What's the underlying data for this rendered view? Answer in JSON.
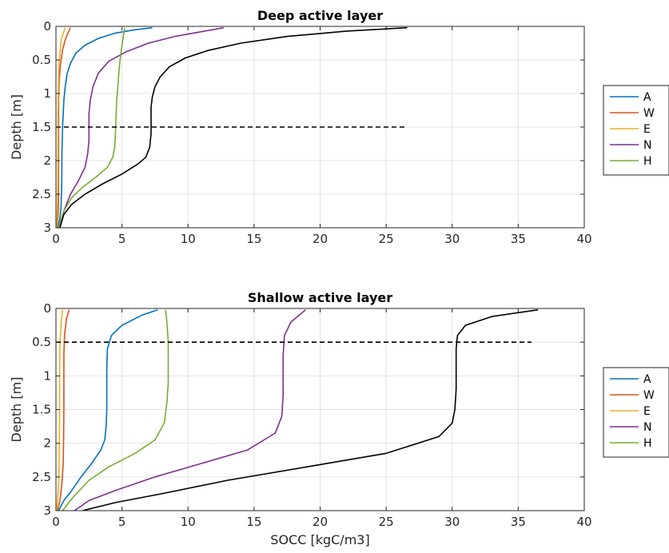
{
  "chart_data": [
    {
      "type": "line",
      "title": "Deep active layer",
      "xlabel": "",
      "ylabel": "Depth [m]",
      "xlim": [
        0,
        40
      ],
      "ylim": [
        0,
        3
      ],
      "y_reversed": true,
      "xticks": [
        0,
        5,
        10,
        15,
        20,
        25,
        30,
        35,
        40
      ],
      "yticks": [
        0,
        0.5,
        1,
        1.5,
        2,
        2.5,
        3
      ],
      "ytick_labels": [
        "0",
        "0.5",
        "1",
        "1.5",
        "2",
        "2.5",
        "3"
      ],
      "grid": true,
      "legend": "right",
      "series": [
        {
          "name": "A",
          "color": "#0072BD",
          "x": [
            7.3,
            6.0,
            4.5,
            3.2,
            2.2,
            1.5,
            1.1,
            0.85,
            0.7,
            0.6,
            0.55,
            0.5,
            0.48,
            0.45,
            0.45,
            0.44,
            0.42,
            0.38,
            0.3,
            0.15
          ],
          "y": [
            0.02,
            0.05,
            0.1,
            0.18,
            0.28,
            0.4,
            0.55,
            0.7,
            0.9,
            1.1,
            1.3,
            1.5,
            1.7,
            1.9,
            2.1,
            2.3,
            2.5,
            2.7,
            2.85,
            3.0
          ]
        },
        {
          "name": "W",
          "color": "#D95319",
          "x": [
            1.1,
            0.9,
            0.7,
            0.5,
            0.35,
            0.25,
            0.2,
            0.2,
            0.2,
            0.2,
            0.2,
            0.18,
            0.12,
            0.05
          ],
          "y": [
            0.02,
            0.1,
            0.2,
            0.35,
            0.55,
            0.8,
            1.1,
            1.5,
            1.9,
            2.3,
            2.55,
            2.75,
            2.9,
            3.0
          ]
        },
        {
          "name": "E",
          "color": "#EDB120",
          "x": [
            0.7,
            0.55,
            0.4,
            0.3,
            0.22,
            0.18,
            0.15,
            0.15,
            0.14,
            0.12,
            0.08,
            0.03
          ],
          "y": [
            0.02,
            0.1,
            0.2,
            0.4,
            0.6,
            0.9,
            1.3,
            1.8,
            2.3,
            2.6,
            2.85,
            3.0
          ]
        },
        {
          "name": "N",
          "color": "#7E2F8E",
          "x": [
            12.7,
            11.0,
            9.0,
            7.0,
            5.3,
            4.0,
            3.2,
            2.8,
            2.6,
            2.5,
            2.5,
            2.5,
            2.4,
            2.2,
            1.7,
            1.1,
            0.6,
            0.2
          ],
          "y": [
            0.02,
            0.08,
            0.15,
            0.25,
            0.38,
            0.52,
            0.7,
            0.9,
            1.1,
            1.3,
            1.5,
            1.7,
            1.9,
            2.1,
            2.3,
            2.5,
            2.75,
            3.0
          ]
        },
        {
          "name": "H",
          "color": "#77AC30",
          "x": [
            5.2,
            5.1,
            4.95,
            4.8,
            4.7,
            4.6,
            4.55,
            4.5,
            4.45,
            4.3,
            3.9,
            3.0,
            2.0,
            1.2,
            0.6,
            0.2
          ],
          "y": [
            0.02,
            0.15,
            0.35,
            0.6,
            0.85,
            1.1,
            1.35,
            1.6,
            1.8,
            1.95,
            2.1,
            2.25,
            2.4,
            2.55,
            2.75,
            3.0
          ]
        },
        {
          "name": "",
          "color": "#000000",
          "x": [
            26.6,
            22.0,
            17.5,
            14.0,
            11.5,
            9.8,
            8.6,
            7.9,
            7.5,
            7.3,
            7.2,
            7.2,
            7.2,
            7.1,
            6.8,
            6.2,
            5.0,
            3.5,
            2.2,
            1.2,
            0.6,
            0.3
          ],
          "y": [
            0.02,
            0.07,
            0.15,
            0.25,
            0.36,
            0.47,
            0.6,
            0.75,
            0.9,
            1.05,
            1.2,
            1.4,
            1.6,
            1.8,
            1.95,
            2.05,
            2.2,
            2.35,
            2.5,
            2.65,
            2.8,
            3.0
          ]
        },
        {
          "name": "",
          "color": "#000000",
          "dashed": true,
          "x": [
            0,
            26.6
          ],
          "y": [
            1.5,
            1.5
          ]
        }
      ]
    },
    {
      "type": "line",
      "title": "Shallow active layer",
      "xlabel": "SOCC [kgC/m3]",
      "ylabel": "Depth [m]",
      "xlim": [
        0,
        40
      ],
      "ylim": [
        0,
        3
      ],
      "y_reversed": true,
      "xticks": [
        0,
        5,
        10,
        15,
        20,
        25,
        30,
        35,
        40
      ],
      "yticks": [
        0,
        0.5,
        1,
        1.5,
        2,
        2.5,
        3
      ],
      "ytick_labels": [
        "0",
        "0.5",
        "1",
        "1.5",
        "2",
        "2.5",
        "3"
      ],
      "grid": true,
      "legend": "right",
      "series": [
        {
          "name": "A",
          "color": "#0072BD",
          "x": [
            7.7,
            6.5,
            5.0,
            4.2,
            3.9,
            3.85,
            3.85,
            3.85,
            3.8,
            3.7,
            3.4,
            2.7,
            1.9,
            1.2,
            0.6,
            0.2
          ],
          "y": [
            0.02,
            0.1,
            0.25,
            0.4,
            0.6,
            0.9,
            1.2,
            1.5,
            1.75,
            1.95,
            2.1,
            2.3,
            2.5,
            2.7,
            2.85,
            3.0
          ]
        },
        {
          "name": "W",
          "color": "#D95319",
          "x": [
            1.0,
            0.8,
            0.65,
            0.6,
            0.6,
            0.6,
            0.58,
            0.55,
            0.45,
            0.3,
            0.12
          ],
          "y": [
            0.02,
            0.15,
            0.4,
            0.7,
            1.1,
            1.5,
            1.9,
            2.3,
            2.6,
            2.85,
            3.0
          ]
        },
        {
          "name": "E",
          "color": "#EDB120",
          "x": [
            0.5,
            0.4,
            0.3,
            0.28,
            0.27,
            0.25,
            0.2,
            0.12,
            0.05
          ],
          "y": [
            0.02,
            0.2,
            0.5,
            1.0,
            1.6,
            2.2,
            2.6,
            2.85,
            3.0
          ]
        },
        {
          "name": "N",
          "color": "#7E2F8E",
          "x": [
            18.9,
            17.8,
            17.3,
            17.2,
            17.2,
            17.2,
            17.1,
            16.6,
            14.5,
            11.0,
            7.5,
            4.5,
            2.5,
            1.4
          ],
          "y": [
            0.02,
            0.2,
            0.4,
            0.7,
            1.0,
            1.3,
            1.6,
            1.85,
            2.1,
            2.3,
            2.5,
            2.7,
            2.85,
            3.0
          ]
        },
        {
          "name": "H",
          "color": "#77AC30",
          "x": [
            8.3,
            8.4,
            8.5,
            8.5,
            8.5,
            8.4,
            8.2,
            7.5,
            6.0,
            4.0,
            2.5,
            1.3,
            0.5
          ],
          "y": [
            0.02,
            0.2,
            0.5,
            0.8,
            1.1,
            1.4,
            1.7,
            1.95,
            2.15,
            2.35,
            2.55,
            2.8,
            3.0
          ]
        },
        {
          "name": "",
          "color": "#000000",
          "x": [
            36.5,
            33.0,
            31.0,
            30.4,
            30.3,
            30.3,
            30.3,
            30.2,
            30.0,
            29.0,
            25.0,
            19.0,
            13.0,
            8.0,
            4.5,
            2.0
          ],
          "y": [
            0.02,
            0.12,
            0.25,
            0.4,
            0.6,
            0.9,
            1.2,
            1.5,
            1.7,
            1.9,
            2.15,
            2.35,
            2.55,
            2.75,
            2.88,
            3.0
          ]
        },
        {
          "name": "",
          "color": "#000000",
          "dashed": true,
          "x": [
            0,
            36.0
          ],
          "y": [
            0.5,
            0.5
          ]
        }
      ]
    }
  ]
}
